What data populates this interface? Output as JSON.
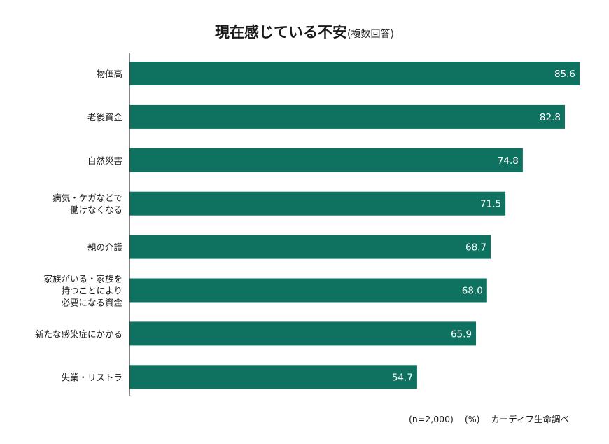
{
  "chart_data": {
    "type": "bar",
    "orientation": "horizontal",
    "title": "現在感じている不安",
    "subtitle": "(複数回答)",
    "categories": [
      "物価高",
      "老後資金",
      "自然災害",
      "病気・ケガなどで\n働けなくなる",
      "親の介護",
      "家族がいる・家族を\n持つことにより\n必要になる資金",
      "新たな感染症にかかる",
      "失業・リストラ"
    ],
    "values": [
      85.6,
      82.8,
      74.8,
      71.5,
      68.7,
      68.0,
      65.9,
      54.7
    ],
    "value_labels": [
      "85.6",
      "82.8",
      "74.8",
      "71.5",
      "68.7",
      "68.0",
      "65.9",
      "54.7"
    ],
    "xlim": [
      0,
      100
    ],
    "grid": false,
    "bar_color": "#0f7261",
    "unit": "(%)"
  },
  "footer": {
    "sample": "(n=2,000)",
    "unit": "(%)",
    "source": "カーディフ生命調べ"
  }
}
